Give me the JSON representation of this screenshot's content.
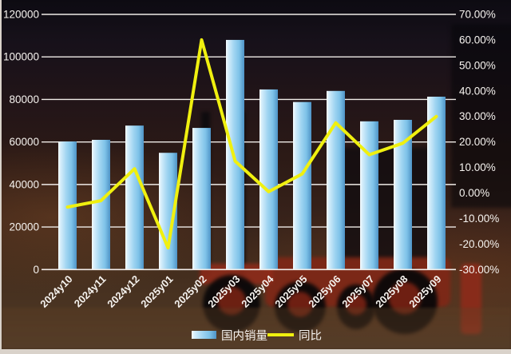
{
  "chart_data": {
    "type": "bar",
    "combo": "bar+line",
    "title": "",
    "categories": [
      "2024y10",
      "2024y11",
      "2024y12",
      "2025y01",
      "2025y02",
      "2025y03",
      "2025y04",
      "2025y05",
      "2025y06",
      "2025y07",
      "2025y08",
      "2025y09"
    ],
    "series": [
      {
        "name": "国内销量",
        "type": "bar",
        "axis": "left",
        "values": [
          60200,
          61000,
          67700,
          54900,
          66600,
          108000,
          84700,
          78800,
          84000,
          69700,
          70400,
          81300
        ]
      },
      {
        "name": "同比",
        "type": "line",
        "axis": "right",
        "values": [
          -5.5,
          -3.0,
          9.5,
          -21.5,
          60.0,
          12.5,
          0.5,
          7.5,
          27.5,
          15.0,
          19.5,
          30.0
        ]
      }
    ],
    "left_axis": {
      "min": 0,
      "max": 120000,
      "step": 20000,
      "tick_labels": [
        "0",
        "20000",
        "40000",
        "60000",
        "80000",
        "100000",
        "120000"
      ]
    },
    "right_axis": {
      "min": -30,
      "max": 70,
      "step": 10,
      "tick_labels": [
        "-30.00%",
        "-20.00%",
        "-10.00%",
        "0.00%",
        "10.00%",
        "20.00%",
        "30.00%",
        "40.00%",
        "50.00%",
        "60.00%",
        "70.00%"
      ]
    },
    "grid": true,
    "legend_position": "bottom"
  },
  "legend": {
    "bar_label": "国内销量",
    "line_label": "同比"
  },
  "colors": {
    "line": "#f0f00f",
    "grid": "#f0ece8",
    "text": "#f6f3ef",
    "bar_gradient": [
      "#f8fdff",
      "#d6eefb",
      "#9fd4f1",
      "#7ec2e8",
      "#4e93c6"
    ],
    "bg_top": "#0d0b12",
    "bg_low": "#4a3422",
    "forklift_red": "#8e2b1a",
    "bottom_strip": "#d9d2ca"
  }
}
